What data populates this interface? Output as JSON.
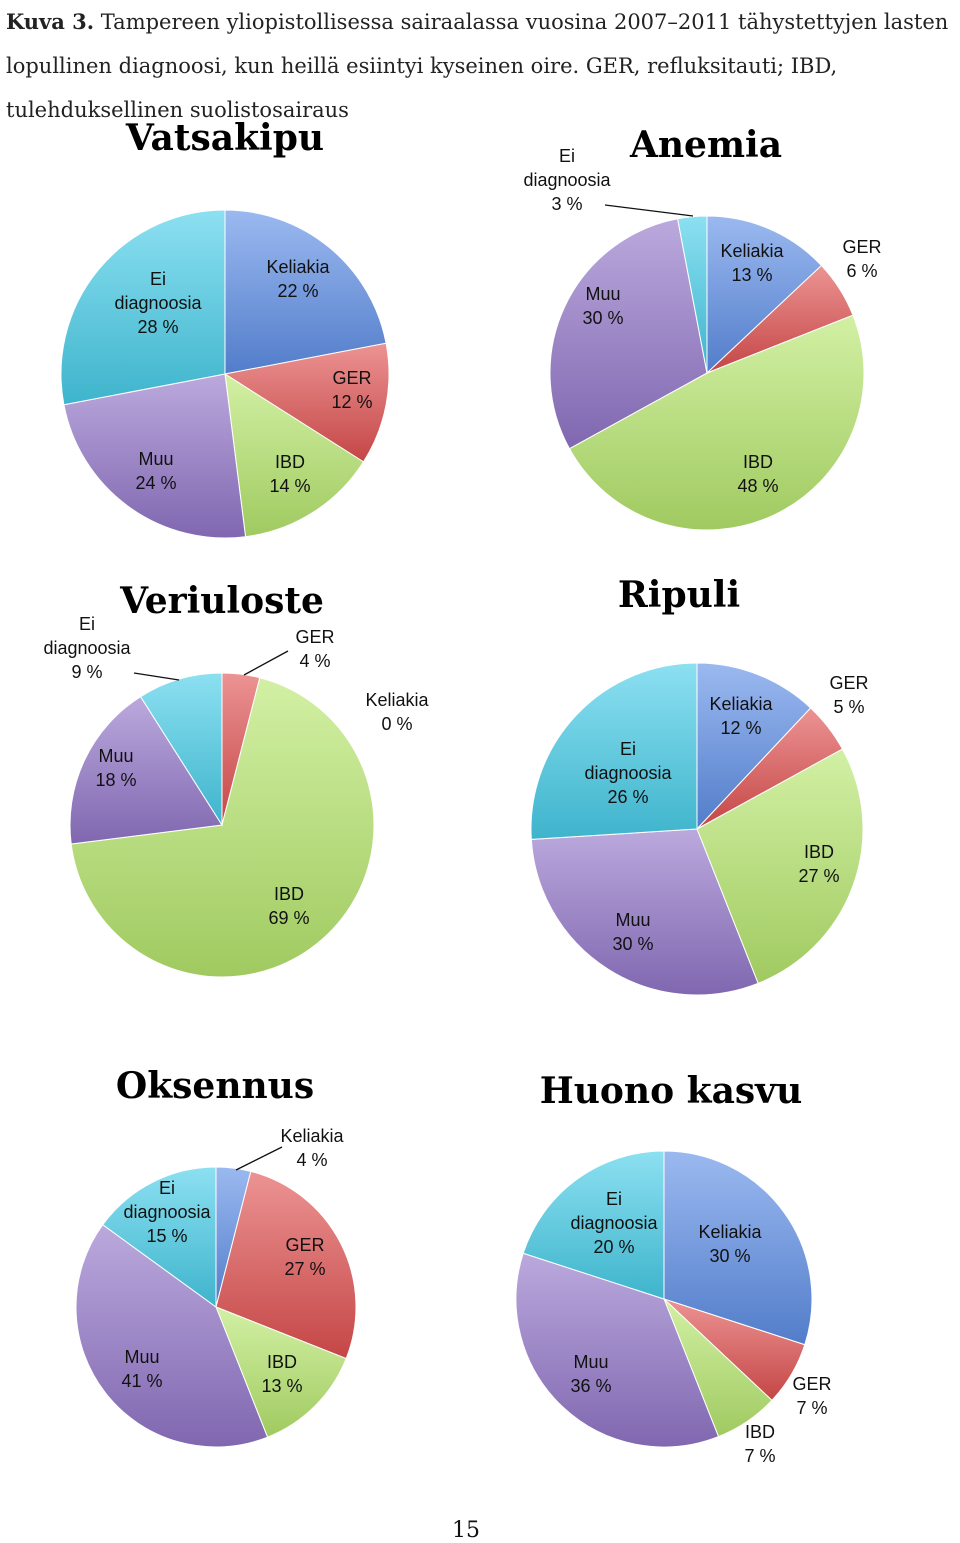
{
  "caption": {
    "label": "Kuva 3.",
    "text": "Tampereen yliopistollisessa sairaalassa vuosina 2007–2011 tähystettyjen lasten lopullinen diagnoosi, kun heillä esiintyi kyseinen oire. GER, refluksitauti; IBD, tulehduksellinen suolistosairaus"
  },
  "page_number": "15",
  "colors": {
    "Keliakia": "#5d8ee6",
    "GER": "#e05050",
    "IBD": "#b6e66d",
    "Muu": "#9275c8",
    "Ei diagnoosia": "#46cde8"
  },
  "chart_data": [
    {
      "type": "pie",
      "title": "Vatsakipu",
      "slices": [
        {
          "name": "Keliakia",
          "value": 22,
          "label": "22 %"
        },
        {
          "name": "GER",
          "value": 12,
          "label": "12 %"
        },
        {
          "name": "IBD",
          "value": 14,
          "label": "14 %"
        },
        {
          "name": "Muu",
          "value": 24,
          "label": "24 %"
        },
        {
          "name": "Ei diagnoosia",
          "value": 28,
          "label": "28 %"
        }
      ]
    },
    {
      "type": "pie",
      "title": "Anemia",
      "slices": [
        {
          "name": "Keliakia",
          "value": 13,
          "label": "13 %"
        },
        {
          "name": "GER",
          "value": 6,
          "label": "6 %"
        },
        {
          "name": "IBD",
          "value": 48,
          "label": "48 %"
        },
        {
          "name": "Muu",
          "value": 30,
          "label": "30 %"
        },
        {
          "name": "Ei diagnoosia",
          "value": 3,
          "label": "3 %"
        }
      ]
    },
    {
      "type": "pie",
      "title": "Veriuloste",
      "slices": [
        {
          "name": "Keliakia",
          "value": 0,
          "label": "0 %"
        },
        {
          "name": "GER",
          "value": 4,
          "label": "4 %"
        },
        {
          "name": "IBD",
          "value": 69,
          "label": "69 %"
        },
        {
          "name": "Muu",
          "value": 18,
          "label": "18 %"
        },
        {
          "name": "Ei diagnoosia",
          "value": 9,
          "label": "9 %"
        }
      ]
    },
    {
      "type": "pie",
      "title": "Ripuli",
      "slices": [
        {
          "name": "Keliakia",
          "value": 12,
          "label": "12 %"
        },
        {
          "name": "GER",
          "value": 5,
          "label": "5 %"
        },
        {
          "name": "IBD",
          "value": 27,
          "label": "27 %"
        },
        {
          "name": "Muu",
          "value": 30,
          "label": "30 %"
        },
        {
          "name": "Ei diagnoosia",
          "value": 26,
          "label": "26 %"
        }
      ]
    },
    {
      "type": "pie",
      "title": "Oksennus",
      "slices": [
        {
          "name": "Keliakia",
          "value": 4,
          "label": "4 %"
        },
        {
          "name": "GER",
          "value": 27,
          "label": "27 %"
        },
        {
          "name": "IBD",
          "value": 13,
          "label": "13 %"
        },
        {
          "name": "Muu",
          "value": 41,
          "label": "41 %"
        },
        {
          "name": "Ei diagnoosia",
          "value": 15,
          "label": "15 %"
        }
      ]
    },
    {
      "type": "pie",
      "title": "Huono kasvu",
      "slices": [
        {
          "name": "Keliakia",
          "value": 30,
          "label": "30 %"
        },
        {
          "name": "GER",
          "value": 7,
          "label": "7 %"
        },
        {
          "name": "IBD",
          "value": 7,
          "label": "7 %"
        },
        {
          "name": "Muu",
          "value": 36,
          "label": "36 %"
        },
        {
          "name": "Ei diagnoosia",
          "value": 20,
          "label": "20 %"
        }
      ]
    }
  ]
}
